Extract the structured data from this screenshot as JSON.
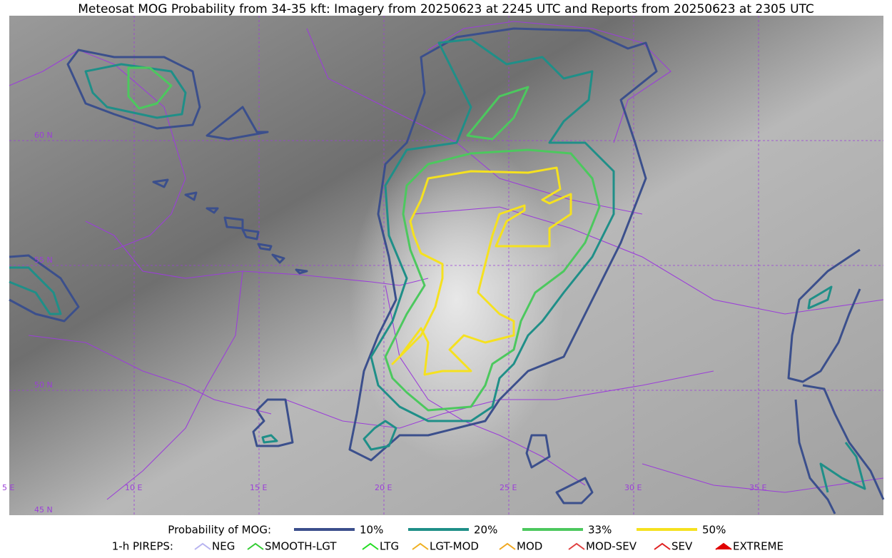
{
  "header": {
    "title": "Meteosat MOG Probability from 34-35 kft: Imagery from 20250623 at 2245 UTC and Reports from 20250623 at 2305 UTC"
  },
  "map": {
    "lat_labels": [
      "60 N",
      "55 N",
      "50 N",
      "45 N"
    ],
    "lon_labels": [
      "5 E",
      "10 E",
      "15 E",
      "20 E",
      "25 E",
      "30 E",
      "35 E"
    ]
  },
  "legend": {
    "probability_title": "Probability of MOG:",
    "probability_levels": [
      {
        "label": "10%",
        "color": "#3b4f8c"
      },
      {
        "label": "20%",
        "color": "#1f8f88"
      },
      {
        "label": "33%",
        "color": "#4cc85e"
      },
      {
        "label": "50%",
        "color": "#f5e11f"
      }
    ],
    "pirep_title": "1-h PIREPS:",
    "pirep_types": [
      {
        "label": "NEG",
        "color": "#b7b3f0"
      },
      {
        "label": "SMOOTH-LGT",
        "color": "#33cc33"
      },
      {
        "label": "LTG",
        "color": "#22dd22"
      },
      {
        "label": "LGT-MOD",
        "color": "#f0b020"
      },
      {
        "label": "MOD",
        "color": "#f0a820"
      },
      {
        "label": "MOD-SEV",
        "color": "#e04040"
      },
      {
        "label": "SEV",
        "color": "#e02020"
      },
      {
        "label": "EXTREME",
        "color": "#e00000"
      }
    ]
  }
}
